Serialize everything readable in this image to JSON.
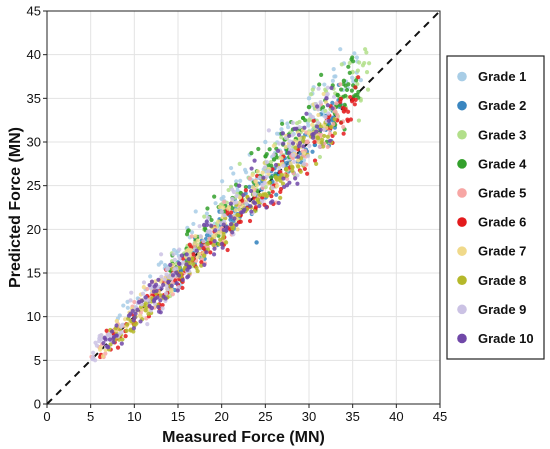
{
  "chart_data": {
    "type": "scatter",
    "xlabel": "Measured Force (MN)",
    "ylabel": "Predicted Force (MN)",
    "xlim": [
      0,
      45
    ],
    "ylim": [
      0,
      45
    ],
    "xticks": [
      "0",
      "5",
      "10",
      "15",
      "20",
      "25",
      "30",
      "35",
      "40",
      "45"
    ],
    "yticks": [
      "0",
      "5",
      "10",
      "15",
      "20",
      "25",
      "30",
      "35",
      "40",
      "45"
    ],
    "grid": true,
    "legend_position": "right",
    "reference_line": {
      "style": "dashed",
      "x": [
        0,
        45
      ],
      "y": [
        0,
        45
      ]
    },
    "series": [
      {
        "name": "Grade 1",
        "color": "#a8cde6",
        "x_range": [
          8,
          36
        ],
        "spread": 2.6,
        "bias": 2.0,
        "points": [
          [
            10.5,
            12.0
          ],
          [
            15.0,
            17.5
          ],
          [
            20.0,
            23.5
          ],
          [
            25.0,
            30.0
          ],
          [
            30.0,
            35.0
          ],
          [
            34.0,
            39.0
          ]
        ]
      },
      {
        "name": "Grade 2",
        "color": "#3a86c0",
        "x_range": [
          14,
          34
        ],
        "spread": 1.6,
        "bias": 0.2,
        "points": [
          [
            16.0,
            16.5
          ],
          [
            22.0,
            21.0
          ],
          [
            24.0,
            18.5
          ],
          [
            28.0,
            29.0
          ],
          [
            32.0,
            33.0
          ]
        ]
      },
      {
        "name": "Grade 3",
        "color": "#b2df8a",
        "x_range": [
          14,
          37
        ],
        "spread": 2.4,
        "bias": 1.2,
        "points": [
          [
            18.0,
            20.0
          ],
          [
            25.0,
            27.0
          ],
          [
            30.0,
            32.5
          ],
          [
            35.0,
            38.0
          ]
        ]
      },
      {
        "name": "Grade 4",
        "color": "#33a02c",
        "x_range": [
          14,
          36
        ],
        "spread": 2.5,
        "bias": 1.0,
        "points": [
          [
            20.0,
            22.0
          ],
          [
            26.0,
            28.0
          ],
          [
            30.0,
            34.0
          ],
          [
            34.0,
            37.0
          ]
        ]
      },
      {
        "name": "Grade 5",
        "color": "#f7a6a4",
        "x_range": [
          5,
          34
        ],
        "spread": 1.9,
        "bias": 0.0,
        "points": [
          [
            6.0,
            6.5
          ],
          [
            12.0,
            12.5
          ],
          [
            20.0,
            20.0
          ],
          [
            28.0,
            28.5
          ],
          [
            33.0,
            33.5
          ]
        ]
      },
      {
        "name": "Grade 6",
        "color": "#e31a1c",
        "x_range": [
          6,
          36
        ],
        "spread": 1.8,
        "bias": -0.4,
        "points": [
          [
            8.0,
            7.5
          ],
          [
            16.0,
            15.5
          ],
          [
            26.0,
            25.0
          ],
          [
            34.0,
            33.5
          ]
        ]
      },
      {
        "name": "Grade 7",
        "color": "#f0d98a",
        "x_range": [
          6,
          32
        ],
        "spread": 2.1,
        "bias": 0.8,
        "points": [
          [
            8.0,
            9.5
          ],
          [
            12.0,
            13.5
          ],
          [
            16.0,
            17.5
          ],
          [
            22.0,
            23.0
          ],
          [
            30.0,
            31.0
          ]
        ]
      },
      {
        "name": "Grade 8",
        "color": "#b5b82a",
        "x_range": [
          7,
          33
        ],
        "spread": 1.6,
        "bias": -0.5,
        "points": [
          [
            10.0,
            9.0
          ],
          [
            18.0,
            17.0
          ],
          [
            25.0,
            24.0
          ],
          [
            31.0,
            30.5
          ]
        ]
      },
      {
        "name": "Grade 9",
        "color": "#cbc2e4",
        "x_range": [
          5,
          33
        ],
        "spread": 2.4,
        "bias": 1.0,
        "points": [
          [
            6.0,
            7.5
          ],
          [
            12.0,
            13.5
          ],
          [
            20.0,
            22.0
          ],
          [
            28.0,
            30.0
          ]
        ]
      },
      {
        "name": "Grade 10",
        "color": "#7048a8",
        "x_range": [
          6,
          33
        ],
        "spread": 2.3,
        "bias": 0.3,
        "points": [
          [
            7.0,
            6.5
          ],
          [
            12.0,
            11.0
          ],
          [
            18.0,
            20.5
          ],
          [
            22.0,
            25.0
          ],
          [
            27.0,
            31.0
          ],
          [
            32.0,
            35.0
          ]
        ]
      }
    ]
  }
}
